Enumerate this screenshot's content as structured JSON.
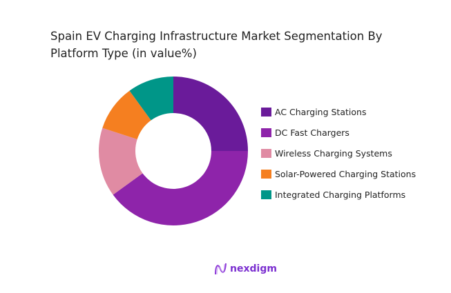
{
  "chart_data": {
    "type": "donut",
    "title": "Spain EV Charging Infrastructure Market Segmentation By Platform Type (in value%)",
    "unit": "%",
    "legend_position": "right",
    "categories": [
      "AC Charging Stations",
      "DC Fast Chargers",
      "Wireless Charging Systems",
      "Solar-Powered Charging Stations",
      "Integrated Charging Platforms"
    ],
    "values": [
      25,
      40,
      15,
      10,
      10
    ],
    "colors": [
      "#6a1b9a",
      "#8e24aa",
      "#e08ba3",
      "#f57f20",
      "#009688"
    ]
  },
  "brand": {
    "name": "nexdigm"
  }
}
